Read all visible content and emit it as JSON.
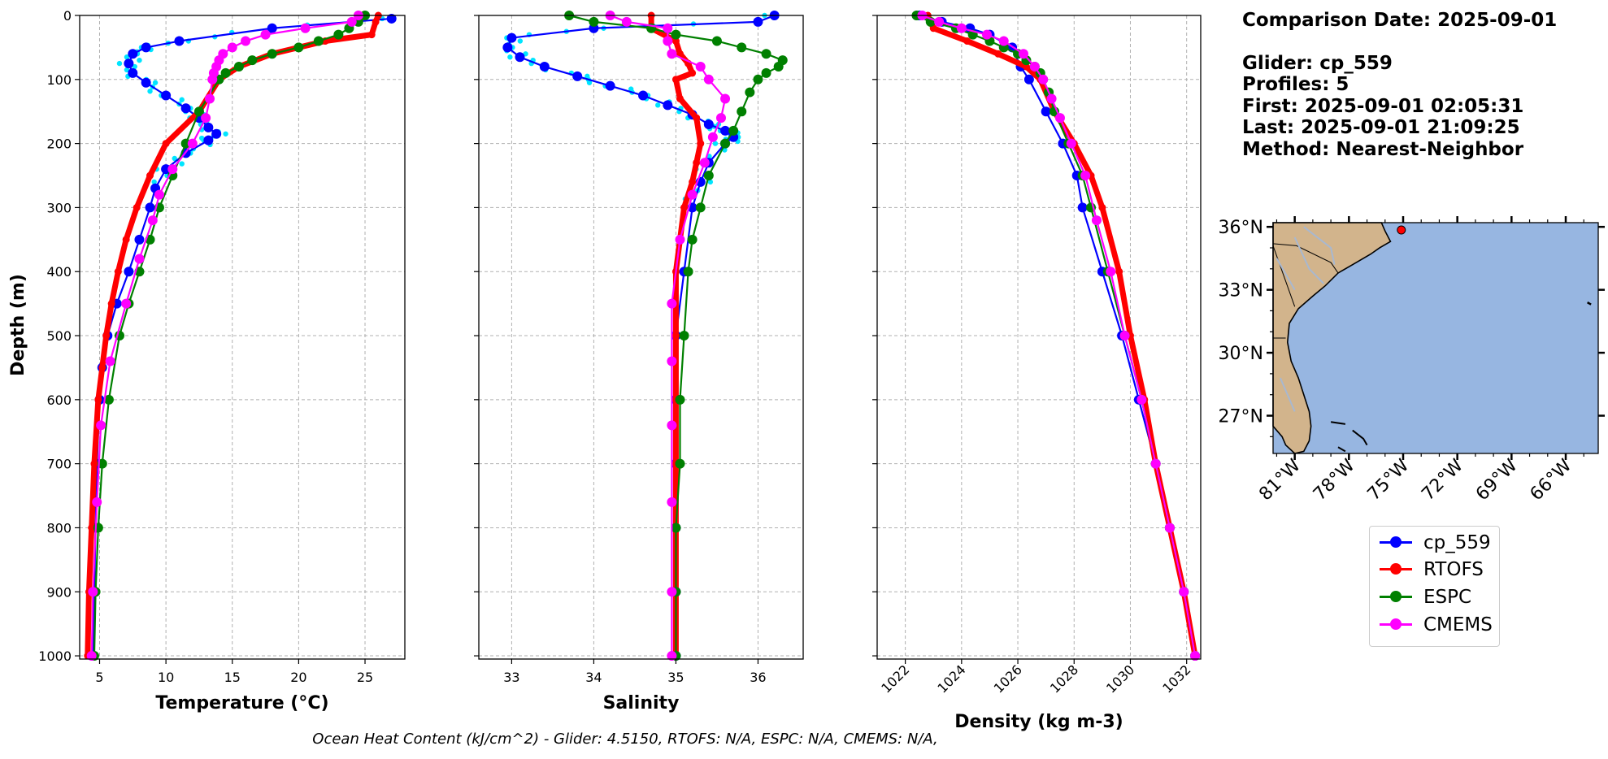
{
  "info": {
    "comparison_date": "Comparison Date: 2025-09-01",
    "glider": "Glider: cp_559",
    "profiles": "Profiles: 5",
    "first": "First: 2025-09-01 02:05:31",
    "last": "Last: 2025-09-01 21:09:25",
    "method": "Method: Nearest-Neighbor"
  },
  "footer": "Ocean Heat Content (kJ/cm^2) - Glider: 4.5150,  RTOFS: N/A,  ESPC: N/A,  CMEMS: N/A,",
  "legend": [
    {
      "label": "cp_559",
      "color": "#0000ff"
    },
    {
      "label": "RTOFS",
      "color": "#ff0000"
    },
    {
      "label": "ESPC",
      "color": "#008000"
    },
    {
      "label": "CMEMS",
      "color": "#ff00ff"
    }
  ],
  "map": {
    "lat_labels": [
      "36°N",
      "33°N",
      "30°N",
      "27°N"
    ],
    "lon_labels": [
      "81°W",
      "78°W",
      "75°W",
      "72°W",
      "69°W",
      "66°W"
    ],
    "land_color": "#d2b48c",
    "ocean_color": "#97b6e1",
    "glider_marker_color": "#ff0000"
  },
  "chart_data": [
    {
      "type": "line",
      "xlabel": "Temperature (°C)",
      "ylabel": "Depth (m)",
      "xlim": [
        3.5,
        28
      ],
      "ylim": [
        1005,
        0
      ],
      "x_ticks": [
        5,
        10,
        15,
        20,
        25
      ],
      "y_ticks": [
        0,
        100,
        200,
        300,
        400,
        500,
        600,
        700,
        800,
        900,
        1000
      ],
      "grid": true,
      "series": [
        {
          "name": "cp_559",
          "color": "#0000ff",
          "depth": [
            5,
            20,
            40,
            50,
            60,
            75,
            90,
            105,
            125,
            145,
            160,
            175,
            185,
            195,
            215,
            240,
            270,
            300,
            350,
            400,
            450,
            500,
            550,
            600,
            700,
            800,
            900,
            1000
          ],
          "values": [
            27,
            18,
            11,
            8.5,
            7.5,
            7.2,
            7.5,
            8.5,
            10,
            11.5,
            12.5,
            13.2,
            13.8,
            13.2,
            11.5,
            10,
            9.2,
            8.8,
            8,
            7.2,
            6.3,
            5.6,
            5.2,
            5.0,
            4.8,
            4.7,
            4.6,
            4.5
          ]
        },
        {
          "name": "RTOFS",
          "color": "#ff0000",
          "depth": [
            0,
            10,
            30,
            40,
            60,
            80,
            100,
            150,
            200,
            250,
            300,
            350,
            400,
            450,
            500,
            550,
            600,
            700,
            800,
            900,
            1000
          ],
          "values": [
            26,
            25.8,
            25.5,
            22,
            18,
            15.5,
            14,
            12.5,
            10,
            8.8,
            7.8,
            7.0,
            6.4,
            5.9,
            5.5,
            5.2,
            4.9,
            4.6,
            4.4,
            4.2,
            4.1
          ]
        },
        {
          "name": "ESPC",
          "color": "#008000",
          "depth": [
            0,
            10,
            20,
            30,
            40,
            50,
            60,
            70,
            80,
            90,
            100,
            150,
            200,
            250,
            300,
            350,
            400,
            450,
            500,
            600,
            700,
            800,
            900,
            1000
          ],
          "values": [
            25,
            24.5,
            23.8,
            23.0,
            21.5,
            20,
            18,
            16.5,
            15.5,
            14.5,
            14,
            12.5,
            11.5,
            10.5,
            9.5,
            8.8,
            8,
            7.2,
            6.5,
            5.7,
            5.2,
            4.9,
            4.7,
            4.6
          ]
        },
        {
          "name": "CMEMS",
          "color": "#ff00ff",
          "depth": [
            0,
            10,
            20,
            30,
            40,
            50,
            60,
            70,
            80,
            90,
            100,
            130,
            160,
            200,
            240,
            280,
            320,
            380,
            450,
            540,
            640,
            760,
            900,
            1000
          ],
          "values": [
            24.5,
            24,
            20.5,
            17.5,
            16,
            15,
            14.3,
            14,
            13.8,
            13.6,
            13.5,
            13.3,
            13,
            12,
            10.5,
            9.5,
            9,
            8.0,
            7.0,
            5.8,
            5.1,
            4.8,
            4.5,
            4.4
          ]
        }
      ]
    },
    {
      "type": "line",
      "xlabel": "Salinity",
      "xlim": [
        32.6,
        36.55
      ],
      "ylim": [
        1005,
        0
      ],
      "x_ticks": [
        33,
        34,
        35,
        36
      ],
      "grid": true,
      "series": [
        {
          "name": "cp_559",
          "color": "#0000ff",
          "depth": [
            0,
            10,
            20,
            35,
            50,
            65,
            80,
            95,
            110,
            125,
            140,
            155,
            170,
            180,
            190,
            200,
            230,
            260,
            300,
            400,
            500,
            600,
            700,
            800,
            900,
            1000
          ],
          "values": [
            36.2,
            36.0,
            34,
            33,
            32.95,
            33.1,
            33.4,
            33.8,
            34.2,
            34.6,
            34.9,
            35.2,
            35.4,
            35.6,
            35.7,
            35.6,
            35.4,
            35.3,
            35.2,
            35.1,
            35.0,
            35.0,
            35.0,
            35.0,
            35.0,
            35.0
          ]
        },
        {
          "name": "RTOFS",
          "color": "#ff0000",
          "depth": [
            0,
            20,
            40,
            60,
            75,
            90,
            100,
            130,
            160,
            200,
            230,
            260,
            300,
            350,
            400,
            500,
            600,
            700,
            800,
            900,
            1000
          ],
          "values": [
            34.7,
            34.7,
            35.0,
            35.05,
            35.15,
            35.2,
            35.0,
            35.05,
            35.25,
            35.3,
            35.25,
            35.2,
            35.1,
            35.05,
            35.0,
            35.0,
            35.0,
            35.0,
            35.0,
            35.0,
            35.0
          ]
        },
        {
          "name": "ESPC",
          "color": "#008000",
          "depth": [
            0,
            10,
            20,
            30,
            40,
            50,
            60,
            70,
            80,
            90,
            100,
            120,
            150,
            180,
            200,
            250,
            300,
            350,
            400,
            500,
            600,
            700,
            800,
            900,
            1000
          ],
          "values": [
            33.7,
            34.0,
            34.7,
            35.0,
            35.5,
            35.8,
            36.1,
            36.3,
            36.25,
            36.1,
            36.0,
            35.9,
            35.8,
            35.7,
            35.6,
            35.4,
            35.3,
            35.2,
            35.15,
            35.1,
            35.05,
            35.05,
            35.0,
            35.0,
            35.0
          ]
        },
        {
          "name": "CMEMS",
          "color": "#ff00ff",
          "depth": [
            0,
            10,
            20,
            40,
            60,
            80,
            100,
            130,
            160,
            190,
            230,
            280,
            350,
            450,
            540,
            640,
            760,
            900,
            1000
          ],
          "values": [
            34.2,
            34.4,
            34.9,
            34.9,
            34.95,
            35.3,
            35.4,
            35.6,
            35.55,
            35.45,
            35.35,
            35.2,
            35.05,
            34.95,
            34.95,
            34.95,
            34.95,
            34.95,
            34.95
          ]
        }
      ]
    },
    {
      "type": "line",
      "xlabel": "Density (kg m-3)",
      "xlim": [
        1021,
        1032.5
      ],
      "ylim": [
        1005,
        0
      ],
      "x_ticks": [
        1022,
        1024,
        1026,
        1028,
        1030,
        1032
      ],
      "grid": true,
      "series": [
        {
          "name": "cp_559",
          "color": "#0000ff",
          "depth": [
            0,
            10,
            20,
            30,
            50,
            80,
            100,
            150,
            200,
            250,
            300,
            400,
            500,
            600,
            700,
            800,
            900,
            1000
          ],
          "values": [
            1022.5,
            1023.3,
            1024.3,
            1025.0,
            1025.8,
            1026.1,
            1026.4,
            1027.0,
            1027.6,
            1028.1,
            1028.3,
            1029.0,
            1029.7,
            1030.3,
            1030.9,
            1031.4,
            1031.9,
            1032.3
          ]
        },
        {
          "name": "RTOFS",
          "color": "#ff0000",
          "depth": [
            0,
            20,
            40,
            60,
            80,
            100,
            150,
            200,
            250,
            300,
            400,
            500,
            600,
            700,
            800,
            900,
            1000
          ],
          "values": [
            1022.8,
            1023.0,
            1024.2,
            1025.3,
            1026.3,
            1026.8,
            1027.3,
            1028.0,
            1028.6,
            1029.0,
            1029.6,
            1030.0,
            1030.5,
            1030.9,
            1031.4,
            1031.9,
            1032.3
          ]
        },
        {
          "name": "ESPC",
          "color": "#008000",
          "depth": [
            0,
            10,
            20,
            30,
            40,
            50,
            60,
            70,
            80,
            90,
            100,
            120,
            150,
            200,
            250,
            300,
            400,
            500,
            600,
            700,
            800,
            900,
            1000
          ],
          "values": [
            1022.4,
            1022.9,
            1023.8,
            1024.4,
            1025.0,
            1025.5,
            1026.0,
            1026.3,
            1026.6,
            1026.8,
            1026.9,
            1027.1,
            1027.3,
            1027.8,
            1028.3,
            1028.6,
            1029.2,
            1029.8,
            1030.4,
            1030.9,
            1031.4,
            1031.9,
            1032.3
          ]
        },
        {
          "name": "CMEMS",
          "color": "#ff00ff",
          "depth": [
            0,
            10,
            20,
            30,
            40,
            60,
            80,
            100,
            130,
            160,
            200,
            250,
            320,
            400,
            500,
            600,
            700,
            800,
            900,
            1000
          ],
          "values": [
            1022.6,
            1023.2,
            1024.0,
            1024.9,
            1025.5,
            1026.2,
            1026.6,
            1026.9,
            1027.2,
            1027.5,
            1027.9,
            1028.4,
            1028.8,
            1029.3,
            1029.8,
            1030.4,
            1030.9,
            1031.4,
            1031.9,
            1032.3
          ]
        }
      ]
    }
  ]
}
